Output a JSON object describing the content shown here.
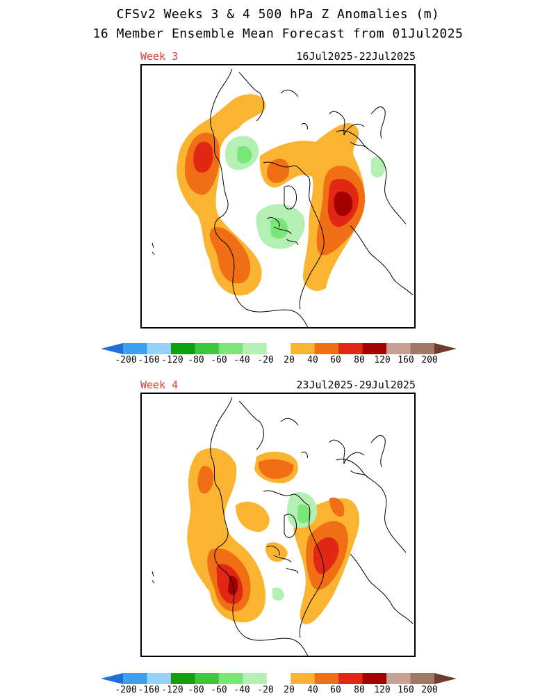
{
  "header": {
    "title": "CFSv2 Weeks 3 & 4 500 hPa Z Anomalies (m)",
    "subtitle": "16 Member Ensemble Mean Forecast from 01Jul2025"
  },
  "panels": [
    {
      "week_label": "Week 3",
      "date_range": "16Jul2025-22Jul2025"
    },
    {
      "week_label": "Week 4",
      "date_range": "23Jul2025-29Jul2025"
    }
  ],
  "colorbar": {
    "tick_labels": [
      "-200",
      "-160",
      "-120",
      "-80",
      "-60",
      "-40",
      "-20",
      "20",
      "40",
      "60",
      "80",
      "120",
      "160",
      "200"
    ],
    "colors": [
      "#1e6fd9",
      "#3c9ff0",
      "#96d2fa",
      "#0fa00f",
      "#3cc83c",
      "#78e678",
      "#b4f0b4",
      "#ffffff",
      "#fab432",
      "#f06e14",
      "#e02814",
      "#a50000",
      "#c8a096",
      "#a07868",
      "#6e3c2c"
    ]
  },
  "legend_colors": {
    "pos20": "#fab432",
    "pos40": "#f06e14",
    "pos60": "#e02814",
    "pos80": "#a50000",
    "neg20": "#b4f0b4",
    "neg40": "#78e678"
  }
}
